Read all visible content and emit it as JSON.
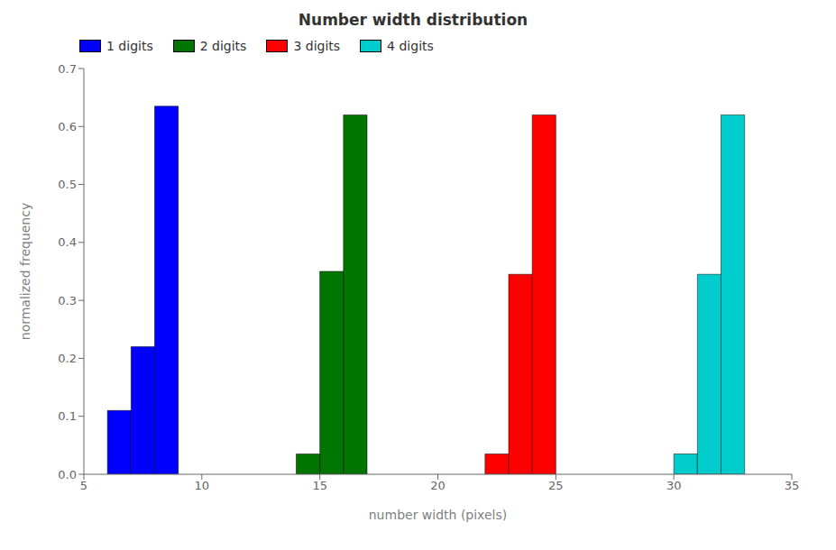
{
  "chart_data": {
    "type": "histogram",
    "title": "Number width distribution",
    "xlabel": "number width (pixels)",
    "ylabel": "normalized frequency",
    "xlim": [
      5,
      35
    ],
    "ylim": [
      0,
      0.7
    ],
    "xticks": [
      5,
      10,
      15,
      20,
      25,
      30,
      35
    ],
    "yticks": [
      {
        "value": 0.0,
        "label": "0.0"
      },
      0.1,
      0.2,
      0.3,
      0.4,
      0.5,
      0.6,
      0.7
    ],
    "legend": "upper left",
    "grid": false,
    "series": [
      {
        "name": "1 digits",
        "color": "#0000ff",
        "bins": [
          6,
          7,
          8,
          9
        ],
        "values": [
          0.11,
          0.22,
          0.635
        ]
      },
      {
        "name": "2 digits",
        "color": "#007500",
        "bins": [
          14,
          15,
          16,
          17
        ],
        "values": [
          0.035,
          0.35,
          0.62
        ]
      },
      {
        "name": "3 digits",
        "color": "#ff0000",
        "bins": [
          22,
          23,
          24,
          25
        ],
        "values": [
          0.035,
          0.345,
          0.62
        ]
      },
      {
        "name": "4 digits",
        "color": "#00cccc",
        "bins": [
          30,
          31,
          32,
          33
        ],
        "values": [
          0.035,
          0.345,
          0.62
        ]
      }
    ]
  }
}
